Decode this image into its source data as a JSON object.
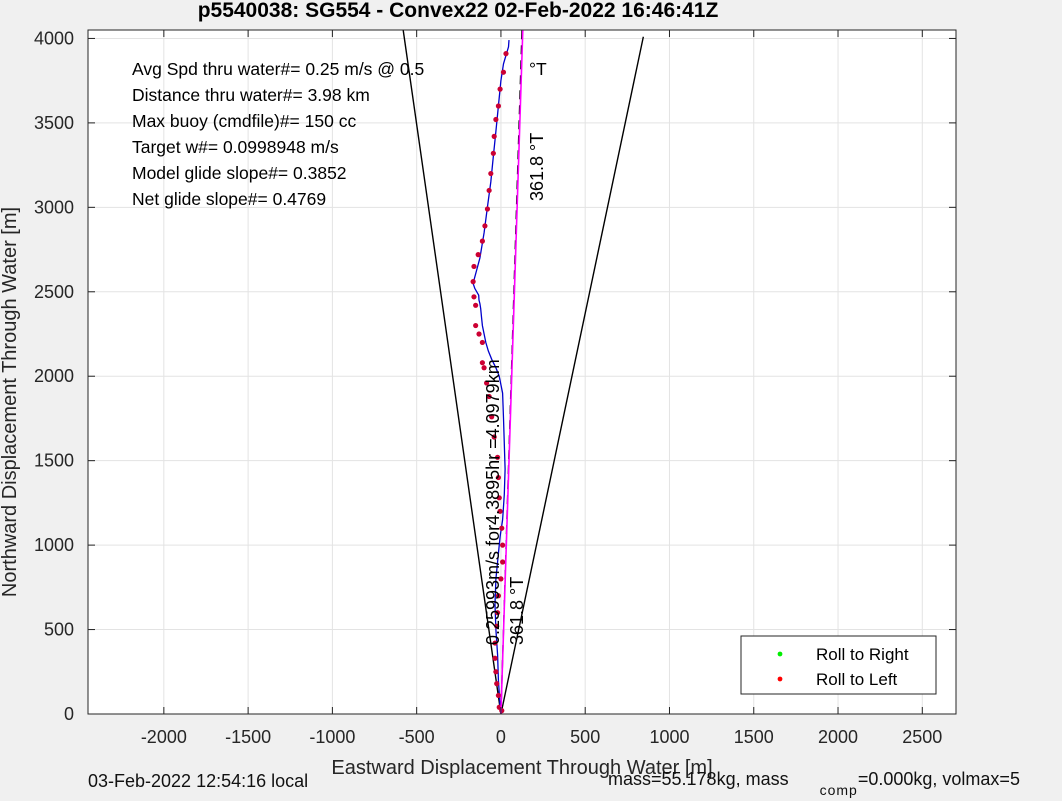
{
  "chart_data": {
    "type": "line",
    "title": "p5540038: SG554 - Convex22 02-Feb-2022 16:46:41Z",
    "xlabel": "Eastward Displacement Through Water [m]",
    "ylabel": "Northward Displacement Through Water [m]",
    "xlim": [
      -2450,
      2700
    ],
    "ylim": [
      0,
      4050
    ],
    "xticks": [
      -2000,
      -1500,
      -1000,
      -500,
      0,
      500,
      1000,
      1500,
      2000,
      2500
    ],
    "xtick_labels": [
      "-2000",
      "-1500",
      "-1000",
      "-500",
      "0",
      "500",
      "1000",
      "1500",
      "2000",
      "2500"
    ],
    "yticks": [
      0,
      500,
      1000,
      1500,
      2000,
      2500,
      3000,
      3500,
      4000
    ],
    "ytick_labels": [
      "0",
      "500",
      "1000",
      "1500",
      "2000",
      "2500",
      "3000",
      "3500",
      "4000"
    ],
    "grid": true,
    "legend_position": "bottom-right",
    "legend": [
      {
        "label": "Roll to Right",
        "color": "#00ee00"
      },
      {
        "label": "Roll to Left",
        "color": "#ff0000"
      }
    ],
    "info_lines": [
      "Avg Spd thru water#=  0.25 m/s @   0.5",
      "Distance thru water#=  3.98 km",
      "Max buoy (cmdfile)#= 150 cc",
      "Target w#= 0.0998948 m/s",
      "Model glide slope#= 0.3852",
      "Net glide slope#= 0.4769"
    ],
    "info_degree_label": "°T",
    "heading_label_top": "361.8 °T",
    "heading_label_bottom": "361.8 °T",
    "speed_label": "0.25993m/s for4.3895hr =4.0979km",
    "cone_lines": [
      {
        "name": "cone-left",
        "x": [
          0,
          -580
        ],
        "y": [
          0,
          4050
        ],
        "color": "#000000"
      },
      {
        "name": "cone-right",
        "x": [
          0,
          845
        ],
        "y": [
          0,
          4010
        ],
        "color": "#000000"
      }
    ],
    "series": [
      {
        "name": "",
        "role": "track",
        "color": "#0000cc",
        "x": [
          0,
          -5,
          -15,
          -20,
          -30,
          -35,
          -30,
          -15,
          -5,
          10,
          20,
          25,
          20,
          15,
          10,
          -10,
          -30,
          -55,
          -75,
          -90,
          -100,
          -110,
          -115,
          -120,
          -125,
          -130,
          -132,
          -155,
          -165,
          -125,
          -100,
          -80,
          -60,
          -45,
          -30,
          -15,
          0,
          15,
          30,
          45,
          48
        ],
        "y": [
          0,
          50,
          200,
          350,
          500,
          650,
          800,
          950,
          1050,
          1150,
          1300,
          1450,
          1600,
          1750,
          1900,
          2000,
          2050,
          2100,
          2150,
          2200,
          2250,
          2300,
          2350,
          2400,
          2430,
          2450,
          2480,
          2520,
          2550,
          2700,
          2850,
          3000,
          3150,
          3300,
          3450,
          3600,
          3750,
          3850,
          3900,
          3950,
          3990
        ]
      },
      {
        "name": "",
        "role": "roll-left-markers",
        "color": "#cc0033",
        "x": [
          5,
          -10,
          -15,
          -25,
          -30,
          -35,
          -35,
          -25,
          -20,
          -15,
          0,
          10,
          10,
          5,
          -5,
          -10,
          -15,
          -20,
          -40,
          -55,
          -70,
          -85,
          -100,
          -110,
          -110,
          -130,
          -150,
          -150,
          -160,
          -165,
          -160,
          -135,
          -110,
          -95,
          -80,
          -70,
          -60,
          -45,
          -40,
          -30,
          -15,
          -5,
          15,
          30
        ],
        "y": [
          20,
          40,
          110,
          180,
          250,
          330,
          420,
          520,
          600,
          700,
          800,
          900,
          1000,
          1100,
          1200,
          1280,
          1400,
          1520,
          1640,
          1760,
          1880,
          1960,
          2050,
          2080,
          2200,
          2250,
          2300,
          2420,
          2470,
          2560,
          2650,
          2720,
          2800,
          2890,
          2990,
          3100,
          3200,
          3320,
          3420,
          3520,
          3600,
          3700,
          3800,
          3910
        ]
      },
      {
        "name": "",
        "role": "heading-dashed",
        "color": "#000000",
        "x": [
          0,
          125
        ],
        "y": [
          0,
          4050
        ]
      },
      {
        "name": "",
        "role": "heading-magenta",
        "color": "#ff00ff",
        "x": [
          0,
          130
        ],
        "y": [
          0,
          4050
        ]
      }
    ]
  },
  "footer": {
    "local_time": "03-Feb-2022 12:54:16 local",
    "mass_text": "mass=55.178kg, mass",
    "comp_sub": "comp",
    "comp_text": "=0.000kg, volmax=5"
  }
}
